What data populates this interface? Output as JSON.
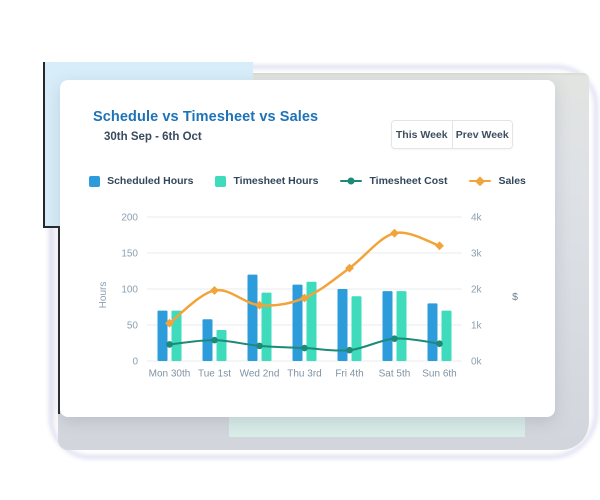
{
  "header": {
    "title": "Schedule vs Timesheet vs Sales",
    "date_range": "30th Sep - 6th Oct"
  },
  "toolbar": {
    "this_week": "This Week",
    "prev_week": "Prev Week"
  },
  "colors": {
    "title_blue": "#1e73b8",
    "scheduled_bar": "#2d9cdb",
    "timesheet_bar": "#3fdbbd",
    "cost_line": "#1d8a78",
    "sales_line": "#f2a33a",
    "axis_text": "#8da0b0",
    "grid": "#e8ebee"
  },
  "chart_data": {
    "type": "bar",
    "subtype": "combo-bar-line-dual-axis",
    "categories": [
      "Mon 30th",
      "Tue 1st",
      "Wed 2nd",
      "Thu 3rd",
      "Fri 4th",
      "Sat 5th",
      "Sun 6th"
    ],
    "series": [
      {
        "name": "Scheduled Hours",
        "type": "bar",
        "axis": "left",
        "color": "#2d9cdb",
        "values": [
          70,
          58,
          120,
          106,
          100,
          97,
          80
        ]
      },
      {
        "name": "Timesheet Hours",
        "type": "bar",
        "axis": "left",
        "color": "#3fdbbd",
        "values": [
          70,
          43,
          95,
          110,
          90,
          97,
          70
        ]
      },
      {
        "name": "Timesheet Cost",
        "type": "line",
        "axis": "right",
        "color": "#1d8a78",
        "marker": "circle",
        "values": [
          460,
          580,
          420,
          360,
          300,
          620,
          480
        ]
      },
      {
        "name": "Sales",
        "type": "line",
        "axis": "right",
        "color": "#f2a33a",
        "marker": "diamond",
        "values": [
          1050,
          1960,
          1550,
          1750,
          2580,
          3550,
          3200
        ]
      }
    ],
    "left_axis": {
      "label": "Hours",
      "min": 0,
      "max": 200,
      "ticks": [
        0,
        50,
        100,
        150,
        200
      ]
    },
    "right_axis": {
      "label": "$",
      "min": 0,
      "max": 4000,
      "ticks": [
        "0k",
        "1k",
        "2k",
        "3k",
        "4k"
      ]
    },
    "grid": true,
    "legend_position": "top-center"
  }
}
